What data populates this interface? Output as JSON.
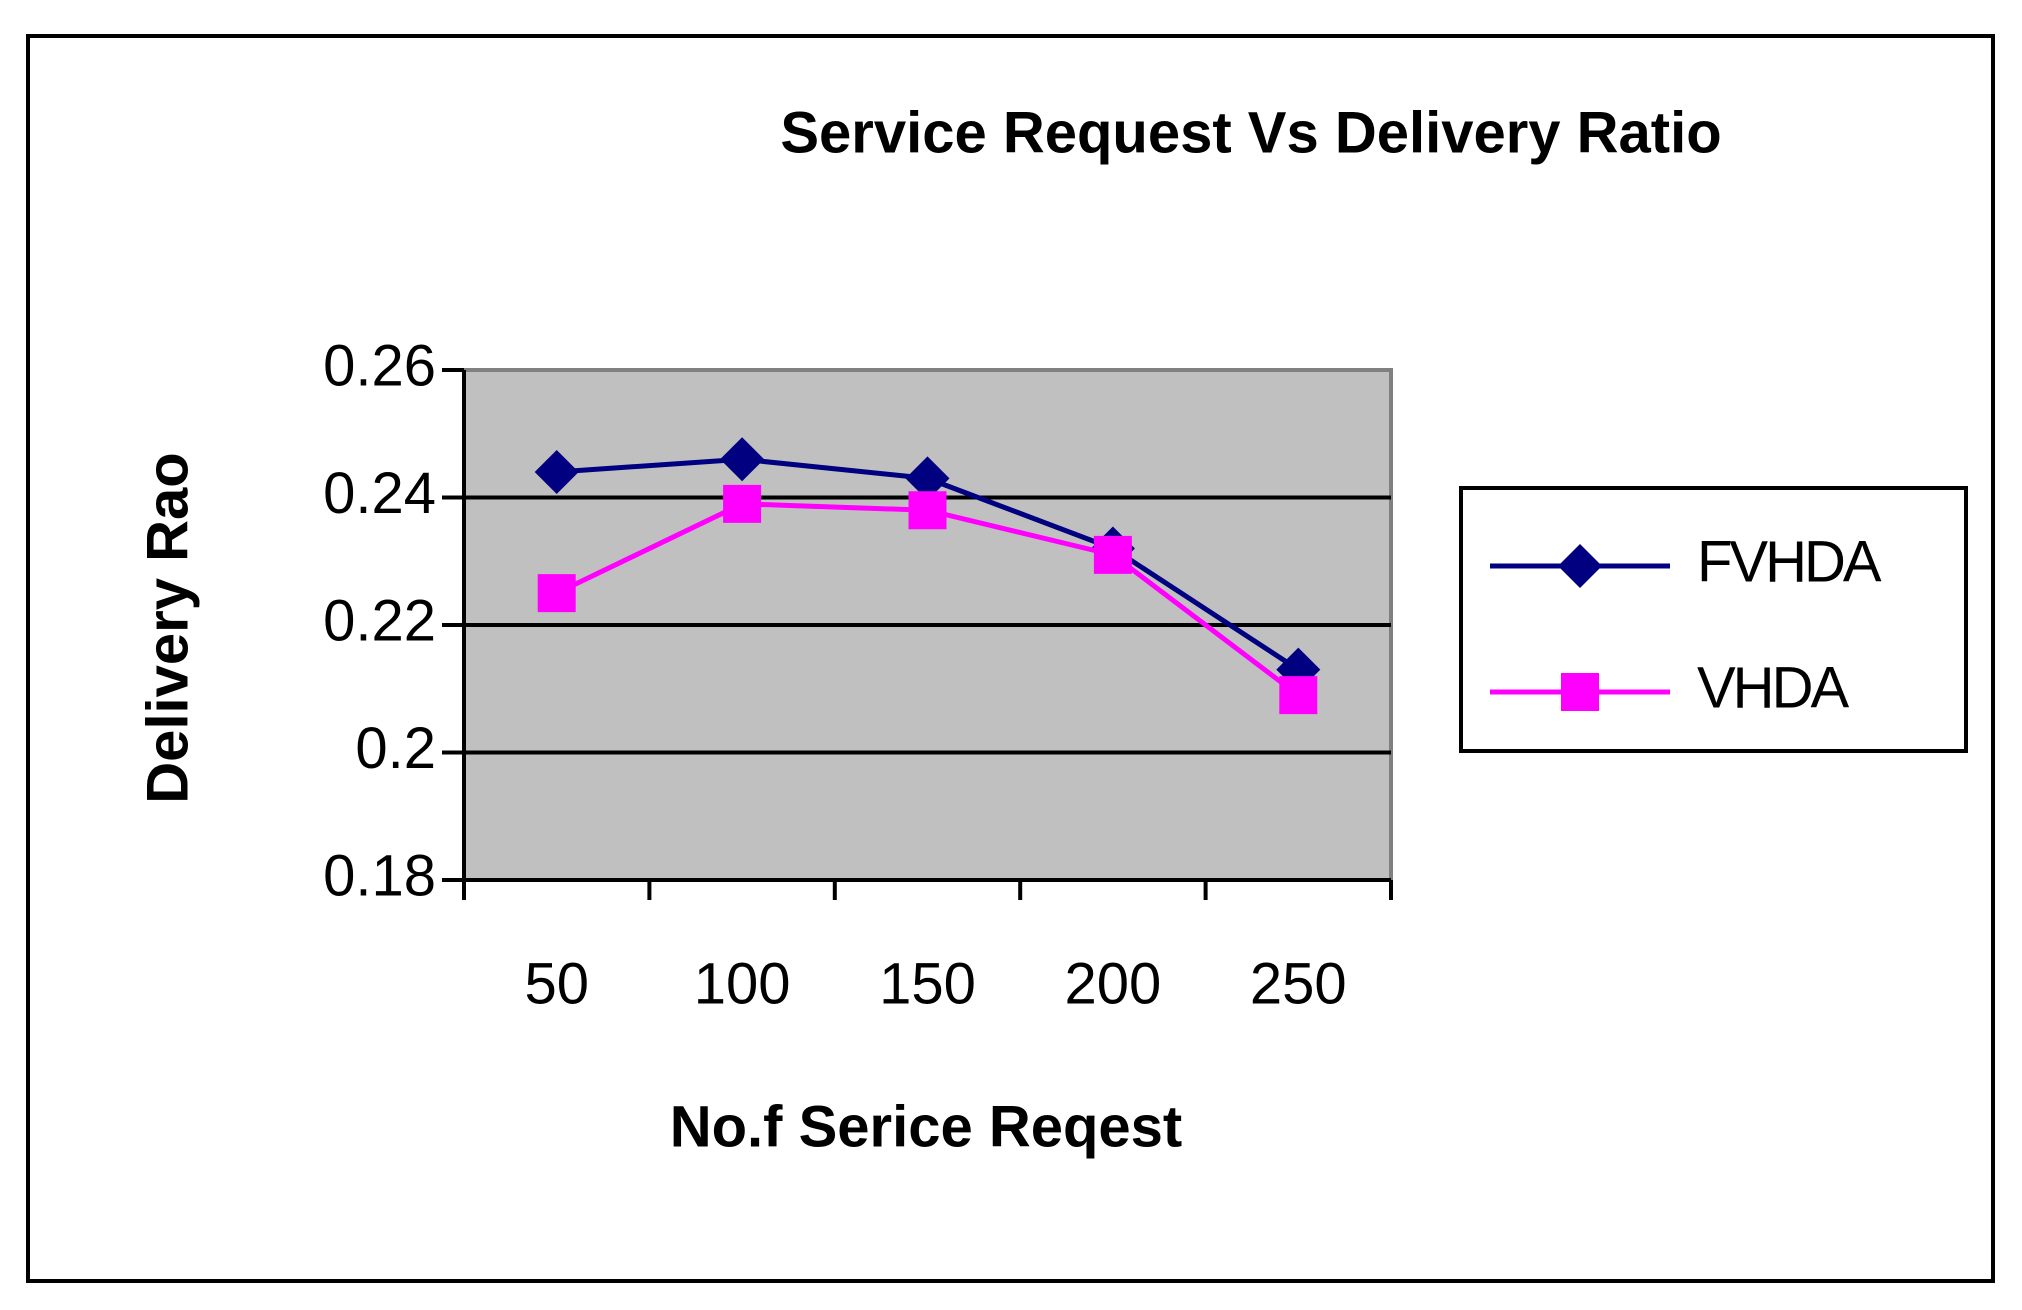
{
  "chart_data": {
    "type": "line",
    "title": "Service Request Vs Delivery Ratio",
    "x_label": "No.f Serice Reqest",
    "y_label": "Delivery Rao",
    "categories": [
      "50",
      "100",
      "150",
      "200",
      "250"
    ],
    "series": [
      {
        "name": "FVHDA",
        "color": "#000080",
        "marker": "diamond",
        "values": [
          0.244,
          0.246,
          0.243,
          0.232,
          0.213
        ]
      },
      {
        "name": "VHDA",
        "color": "#ff00ff",
        "marker": "square",
        "values": [
          0.225,
          0.239,
          0.238,
          0.231,
          0.209
        ]
      }
    ],
    "ylim": [
      0.18,
      0.26
    ],
    "yticks": [
      0.18,
      0.2,
      0.22,
      0.24,
      0.26
    ],
    "grid": true,
    "legend": "right"
  }
}
